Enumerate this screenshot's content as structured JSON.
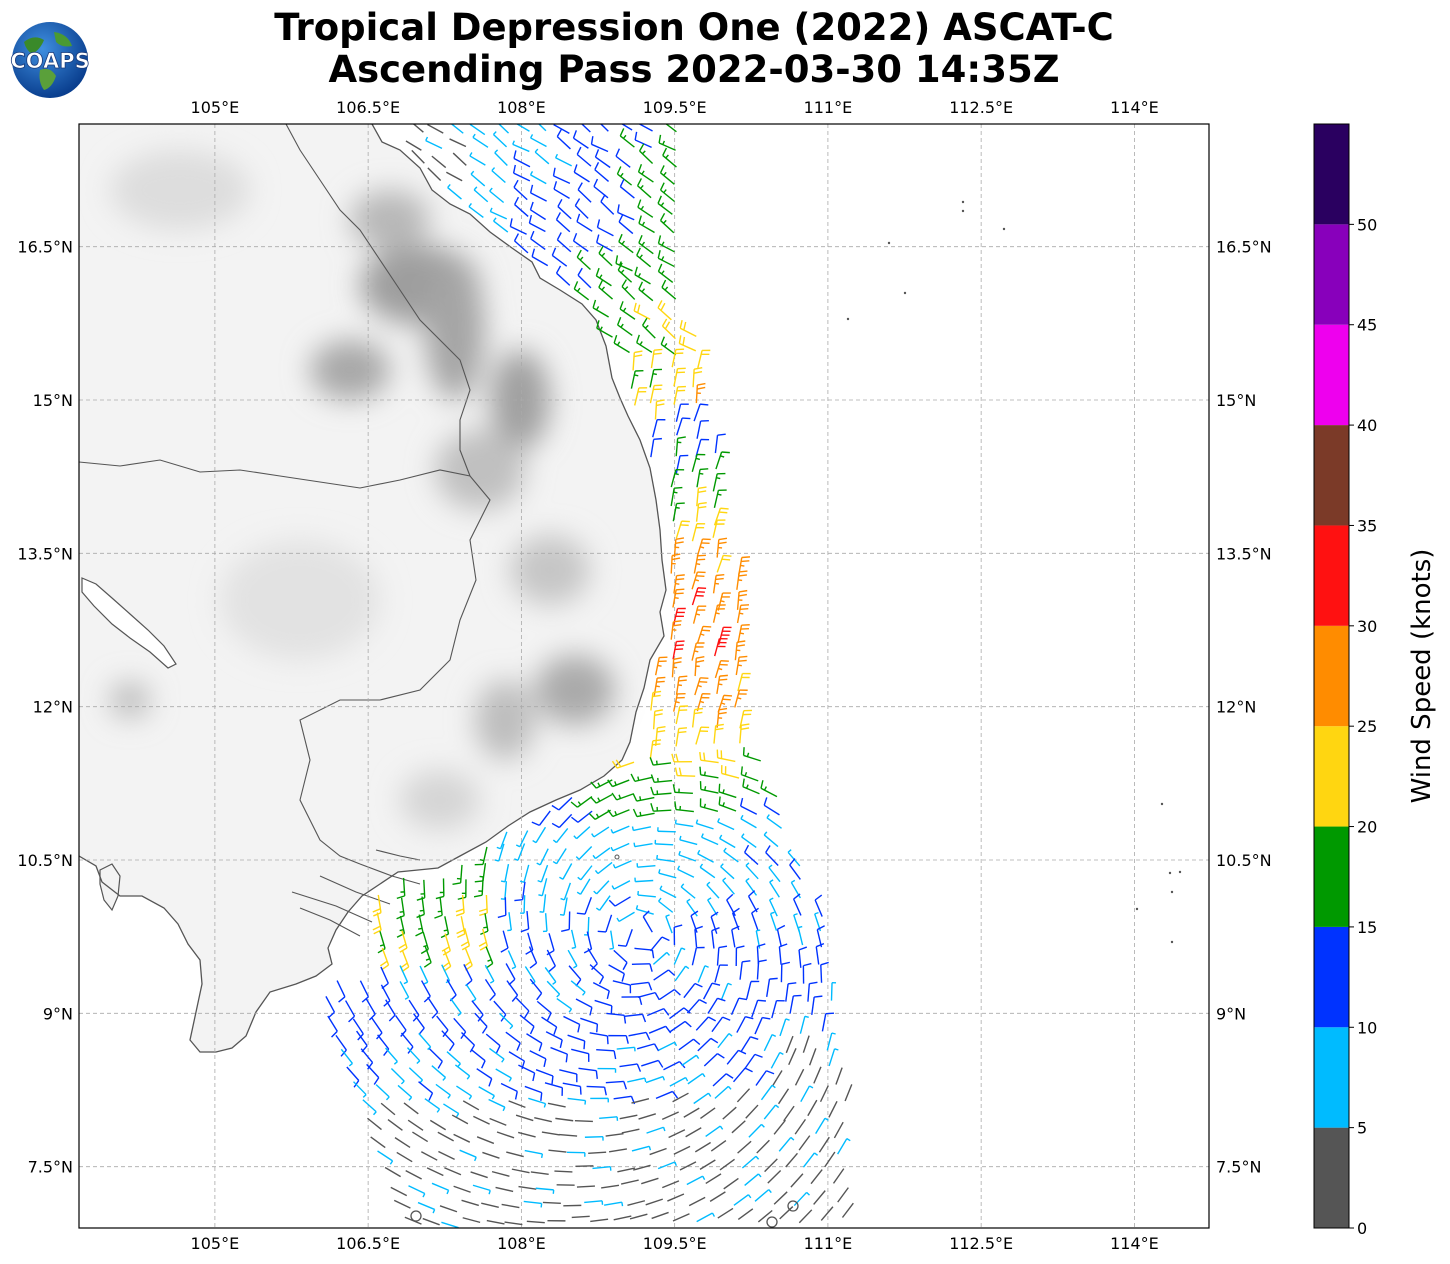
{
  "header": {
    "title_line1": "Tropical Depression One (2022) ASCAT-C",
    "title_line2": "Ascending Pass 2022-03-30 14:35Z",
    "logo_text": "COAPS"
  },
  "map": {
    "lon_ticks": [
      "105°E",
      "106.5°E",
      "108°E",
      "109.5°E",
      "111°E",
      "112.5°E",
      "114°E"
    ],
    "lat_ticks": [
      "16.5°N",
      "15°N",
      "13.5°N",
      "12°N",
      "10.5°N",
      "9°N",
      "7.5°N"
    ],
    "extent": {
      "lon_min": 103.67,
      "lon_max": 114.73,
      "lat_min": 6.9,
      "lat_max": 17.7
    },
    "gridlines": true,
    "land_color": "#f2f2f2",
    "terrain_shading": "#c8c8c8",
    "coastline_color": "#555555"
  },
  "colorbar": {
    "label": "Wind Speed (knots)",
    "tick_labels": [
      "0",
      "5",
      "10",
      "15",
      "20",
      "25",
      "30",
      "35",
      "40",
      "45",
      "50"
    ],
    "bins": [
      {
        "min": 0,
        "max": 5,
        "color": "#555555"
      },
      {
        "min": 5,
        "max": 10,
        "color": "#00bbff"
      },
      {
        "min": 10,
        "max": 15,
        "color": "#0033ff"
      },
      {
        "min": 15,
        "max": 20,
        "color": "#009900"
      },
      {
        "min": 20,
        "max": 25,
        "color": "#ffd611"
      },
      {
        "min": 25,
        "max": 30,
        "color": "#ff8c00"
      },
      {
        "min": 30,
        "max": 35,
        "color": "#ff1111"
      },
      {
        "min": 35,
        "max": 40,
        "color": "#7b3a28"
      },
      {
        "min": 40,
        "max": 45,
        "color": "#ee00ee"
      },
      {
        "min": 45,
        "max": 50,
        "color": "#8800bb"
      },
      {
        "min": 50,
        "max": 55,
        "color": "#2a0060"
      }
    ]
  }
}
